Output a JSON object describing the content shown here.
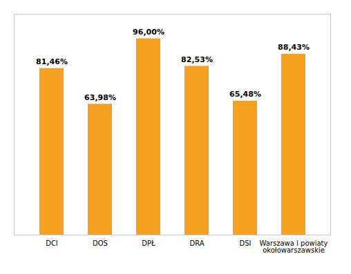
{
  "chart_data": {
    "type": "bar",
    "categories": [
      "DCI",
      "DOS",
      "DPŁ",
      "DRA",
      "DSI",
      "Warszawa i powiaty\nokołowarszawskie"
    ],
    "values": [
      81.46,
      63.98,
      96.0,
      82.53,
      65.48,
      88.43
    ],
    "value_labels": [
      "81,46%",
      "63,98%",
      "96,00%",
      "82,53%",
      "65,48%",
      "88,43%"
    ],
    "color": "#F5A020",
    "ylim": [
      0,
      108
    ],
    "yticks": [],
    "grid": false,
    "data_labels": true,
    "tick_labels": "x"
  }
}
